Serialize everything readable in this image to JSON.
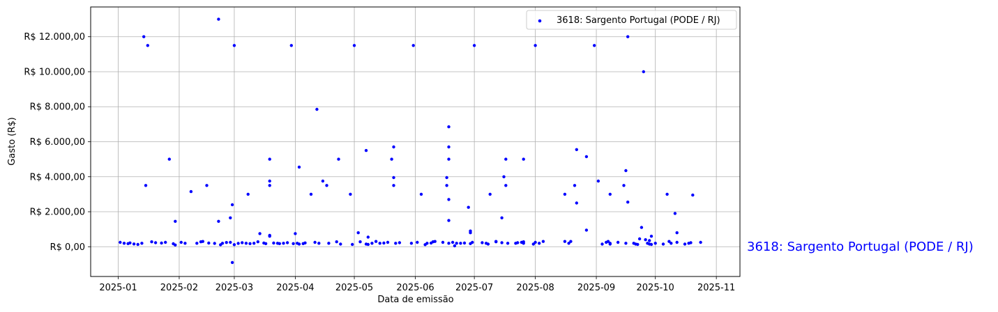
{
  "chart_data": {
    "type": "scatter",
    "xlabel": "Data de emissão",
    "ylabel": "Gasto (R$)",
    "x_ticks": [
      "2025-01",
      "2025-02",
      "2025-03",
      "2025-04",
      "2025-05",
      "2025-06",
      "2025-07",
      "2025-08",
      "2025-09",
      "2025-10",
      "2025-11"
    ],
    "y_ticks": [
      "R$ 0,00",
      "R$ 2.000,00",
      "R$ 4.000,00",
      "R$ 6.000,00",
      "R$ 8.000,00",
      "R$ 10.000,00",
      "R$ 12.000,00"
    ],
    "y_tick_values": [
      0,
      2000,
      4000,
      6000,
      8000,
      10000,
      12000
    ],
    "xlim": [
      "2024-12-18",
      "2025-11-13"
    ],
    "ylim": [
      -1700,
      13700
    ],
    "grid": true,
    "legend_position": "top-right",
    "series": [
      {
        "name": "3618: Sargento Portugal (PODE / RJ)",
        "color": "#0000ff",
        "points": [
          [
            "2025-01-02",
            250
          ],
          [
            "2025-01-04",
            200
          ],
          [
            "2025-01-06",
            180
          ],
          [
            "2025-01-07",
            220
          ],
          [
            "2025-01-09",
            160
          ],
          [
            "2025-01-11",
            130
          ],
          [
            "2025-01-13",
            200
          ],
          [
            "2025-01-14",
            12000
          ],
          [
            "2025-01-15",
            3500
          ],
          [
            "2025-01-16",
            11500
          ],
          [
            "2025-01-18",
            280
          ],
          [
            "2025-01-20",
            230
          ],
          [
            "2025-01-23",
            210
          ],
          [
            "2025-01-25",
            250
          ],
          [
            "2025-01-27",
            5000
          ],
          [
            "2025-01-29",
            170
          ],
          [
            "2025-01-30",
            1450
          ],
          [
            "2025-01-30",
            100
          ],
          [
            "2025-02-02",
            250
          ],
          [
            "2025-02-04",
            200
          ],
          [
            "2025-02-07",
            3150
          ],
          [
            "2025-02-10",
            200
          ],
          [
            "2025-02-12",
            280
          ],
          [
            "2025-02-13",
            300
          ],
          [
            "2025-02-15",
            3500
          ],
          [
            "2025-02-16",
            210
          ],
          [
            "2025-02-19",
            190
          ],
          [
            "2025-02-21",
            13000
          ],
          [
            "2025-02-21",
            1450
          ],
          [
            "2025-02-22",
            110
          ],
          [
            "2025-02-23",
            200
          ],
          [
            "2025-02-25",
            240
          ],
          [
            "2025-02-27",
            1650
          ],
          [
            "2025-02-27",
            250
          ],
          [
            "2025-02-28",
            2400
          ],
          [
            "2025-02-28",
            -900
          ],
          [
            "2025-03-01",
            11500
          ],
          [
            "2025-03-01",
            120
          ],
          [
            "2025-03-03",
            190
          ],
          [
            "2025-03-05",
            230
          ],
          [
            "2025-03-07",
            200
          ],
          [
            "2025-03-08",
            3000
          ],
          [
            "2025-03-09",
            180
          ],
          [
            "2025-03-11",
            200
          ],
          [
            "2025-03-13",
            280
          ],
          [
            "2025-03-14",
            750
          ],
          [
            "2025-03-16",
            210
          ],
          [
            "2025-03-17",
            180
          ],
          [
            "2025-03-19",
            5000
          ],
          [
            "2025-03-19",
            3750
          ],
          [
            "2025-03-19",
            3500
          ],
          [
            "2025-03-19",
            650
          ],
          [
            "2025-03-19",
            600
          ],
          [
            "2025-03-21",
            210
          ],
          [
            "2025-03-23",
            200
          ],
          [
            "2025-03-24",
            180
          ],
          [
            "2025-03-26",
            200
          ],
          [
            "2025-03-28",
            230
          ],
          [
            "2025-03-30",
            11500
          ],
          [
            "2025-03-31",
            180
          ],
          [
            "2025-04-01",
            750
          ],
          [
            "2025-04-02",
            200
          ],
          [
            "2025-04-03",
            4550
          ],
          [
            "2025-04-03",
            150
          ],
          [
            "2025-04-05",
            180
          ],
          [
            "2025-04-06",
            220
          ],
          [
            "2025-04-09",
            3000
          ],
          [
            "2025-04-11",
            250
          ],
          [
            "2025-04-12",
            7850
          ],
          [
            "2025-04-13",
            200
          ],
          [
            "2025-04-15",
            3750
          ],
          [
            "2025-04-17",
            3500
          ],
          [
            "2025-04-18",
            200
          ],
          [
            "2025-04-22",
            280
          ],
          [
            "2025-04-23",
            5000
          ],
          [
            "2025-04-24",
            150
          ],
          [
            "2025-04-29",
            3000
          ],
          [
            "2025-04-30",
            130
          ],
          [
            "2025-05-01",
            11500
          ],
          [
            "2025-05-03",
            800
          ],
          [
            "2025-05-04",
            280
          ],
          [
            "2025-05-07",
            150
          ],
          [
            "2025-05-07",
            5500
          ],
          [
            "2025-05-08",
            550
          ],
          [
            "2025-05-08",
            130
          ],
          [
            "2025-05-10",
            200
          ],
          [
            "2025-05-12",
            300
          ],
          [
            "2025-05-14",
            200
          ],
          [
            "2025-05-16",
            210
          ],
          [
            "2025-05-18",
            250
          ],
          [
            "2025-05-20",
            5000
          ],
          [
            "2025-05-21",
            5700
          ],
          [
            "2025-05-21",
            3950
          ],
          [
            "2025-05-21",
            3500
          ],
          [
            "2025-05-22",
            200
          ],
          [
            "2025-05-24",
            230
          ],
          [
            "2025-05-30",
            200
          ],
          [
            "2025-05-31",
            11500
          ],
          [
            "2025-06-02",
            250
          ],
          [
            "2025-06-04",
            3000
          ],
          [
            "2025-06-06",
            120
          ],
          [
            "2025-06-07",
            200
          ],
          [
            "2025-06-09",
            210
          ],
          [
            "2025-06-10",
            280
          ],
          [
            "2025-06-11",
            300
          ],
          [
            "2025-06-15",
            250
          ],
          [
            "2025-06-17",
            3500
          ],
          [
            "2025-06-17",
            3950
          ],
          [
            "2025-06-18",
            6850
          ],
          [
            "2025-06-18",
            5700
          ],
          [
            "2025-06-18",
            5000
          ],
          [
            "2025-06-18",
            2700
          ],
          [
            "2025-06-18",
            1500
          ],
          [
            "2025-06-18",
            200
          ],
          [
            "2025-06-20",
            250
          ],
          [
            "2025-06-21",
            50
          ],
          [
            "2025-06-22",
            200
          ],
          [
            "2025-06-24",
            200
          ],
          [
            "2025-06-26",
            210
          ],
          [
            "2025-06-28",
            2250
          ],
          [
            "2025-06-29",
            900
          ],
          [
            "2025-06-29",
            800
          ],
          [
            "2025-06-29",
            180
          ],
          [
            "2025-06-30",
            250
          ],
          [
            "2025-07-01",
            11500
          ],
          [
            "2025-07-05",
            230
          ],
          [
            "2025-07-07",
            200
          ],
          [
            "2025-07-08",
            150
          ],
          [
            "2025-07-09",
            3000
          ],
          [
            "2025-07-12",
            280
          ],
          [
            "2025-07-12",
            300
          ],
          [
            "2025-07-15",
            1650
          ],
          [
            "2025-07-15",
            230
          ],
          [
            "2025-07-16",
            4000
          ],
          [
            "2025-07-17",
            5000
          ],
          [
            "2025-07-17",
            3500
          ],
          [
            "2025-07-18",
            200
          ],
          [
            "2025-07-22",
            200
          ],
          [
            "2025-07-23",
            230
          ],
          [
            "2025-07-25",
            250
          ],
          [
            "2025-07-26",
            5000
          ],
          [
            "2025-07-26",
            280
          ],
          [
            "2025-07-26",
            200
          ],
          [
            "2025-07-31",
            150
          ],
          [
            "2025-08-01",
            11500
          ],
          [
            "2025-08-01",
            250
          ],
          [
            "2025-08-03",
            200
          ],
          [
            "2025-08-05",
            300
          ],
          [
            "2025-08-16",
            3000
          ],
          [
            "2025-08-16",
            300
          ],
          [
            "2025-08-18",
            200
          ],
          [
            "2025-08-19",
            300
          ],
          [
            "2025-08-21",
            3500
          ],
          [
            "2025-08-22",
            2500
          ],
          [
            "2025-08-22",
            5550
          ],
          [
            "2025-08-27",
            5150
          ],
          [
            "2025-08-27",
            950
          ],
          [
            "2025-08-31",
            11500
          ],
          [
            "2025-09-02",
            3750
          ],
          [
            "2025-09-04",
            150
          ],
          [
            "2025-09-06",
            250
          ],
          [
            "2025-09-07",
            300
          ],
          [
            "2025-09-08",
            3000
          ],
          [
            "2025-09-08",
            200
          ],
          [
            "2025-09-08",
            150
          ],
          [
            "2025-09-12",
            250
          ],
          [
            "2025-09-15",
            3500
          ],
          [
            "2025-09-16",
            4350
          ],
          [
            "2025-09-16",
            200
          ],
          [
            "2025-09-17",
            12000
          ],
          [
            "2025-09-17",
            2550
          ],
          [
            "2025-09-20",
            200
          ],
          [
            "2025-09-21",
            150
          ],
          [
            "2025-09-22",
            130
          ],
          [
            "2025-09-23",
            450
          ],
          [
            "2025-09-24",
            1100
          ],
          [
            "2025-09-25",
            10000
          ],
          [
            "2025-09-26",
            400
          ],
          [
            "2025-09-27",
            200
          ],
          [
            "2025-09-28",
            350
          ],
          [
            "2025-09-28",
            150
          ],
          [
            "2025-09-29",
            600
          ],
          [
            "2025-09-29",
            130
          ],
          [
            "2025-10-01",
            200
          ],
          [
            "2025-10-05",
            150
          ],
          [
            "2025-10-07",
            3000
          ],
          [
            "2025-10-08",
            300
          ],
          [
            "2025-10-09",
            200
          ],
          [
            "2025-10-11",
            1900
          ],
          [
            "2025-10-12",
            800
          ],
          [
            "2025-10-12",
            250
          ],
          [
            "2025-10-16",
            150
          ],
          [
            "2025-10-18",
            200
          ],
          [
            "2025-10-19",
            230
          ],
          [
            "2025-10-20",
            2950
          ],
          [
            "2025-10-24",
            250
          ]
        ]
      }
    ]
  },
  "side_label": "3618: Sargento Portugal (PODE / RJ)"
}
